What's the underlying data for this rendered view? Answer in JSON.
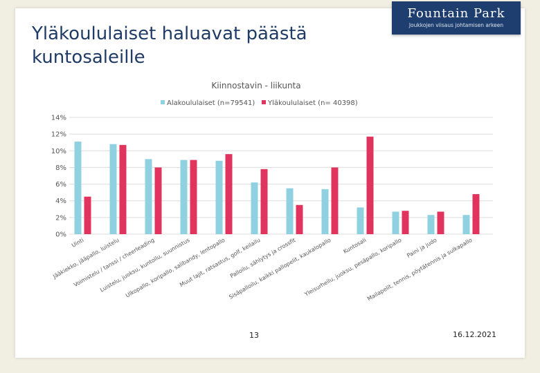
{
  "slide": {
    "title_line1": "Yläkoululaiset haluavat päästä",
    "title_line2": "kuntosaleille",
    "logo_name": "Fountain Park",
    "logo_tagline": "Joukkojen viisaus johtamisen arkeen",
    "page_number": "13",
    "date": "16.12.2021"
  },
  "colors": {
    "series1": "#8fd1e1",
    "series2": "#e0345f",
    "title": "#1f3b66",
    "logo_bg": "#1d3e6e"
  },
  "chart_data": {
    "type": "bar",
    "title": "Kiinnostavin - liikunta",
    "xlabel": "",
    "ylabel": "",
    "ylim": [
      0,
      14
    ],
    "yticks": [
      "0%",
      "2%",
      "4%",
      "6%",
      "8%",
      "10%",
      "12%",
      "14%"
    ],
    "grid": true,
    "legend_position": "top",
    "categories": [
      "Uinti",
      "Jääkiekko, jääpallo, luistelu",
      "Voimistelu / tanssi / cheerleading",
      "Luistelu, juoksu, kuntoilu, suunnistus",
      "Ulkopallo, koripallo, salibandy, lentopallo",
      "Muut lajit, ratsastus, golf, keilailu",
      "Palloilu, sählytys ja crossfit",
      "Sisäpalloilu, kaikki pallopelit, kaukalopallo",
      "Kuntosali",
      "Yleisurheilu, juoksu, pesäpallo, koripallo",
      "Paini ja judo",
      "Mailapelit, tennis, pöytätennis ja sulkapallo"
    ],
    "series": [
      {
        "name": "Alakoululaiset (n=79541)",
        "values": [
          11.1,
          10.8,
          9.0,
          8.9,
          8.8,
          6.2,
          5.5,
          5.4,
          3.2,
          2.7,
          2.3,
          2.3
        ]
      },
      {
        "name": "Yläkoululaiset (n= 40398)",
        "values": [
          4.5,
          10.7,
          8.0,
          8.9,
          9.6,
          7.8,
          3.5,
          8.0,
          11.7,
          2.8,
          2.7,
          4.8
        ]
      }
    ]
  }
}
